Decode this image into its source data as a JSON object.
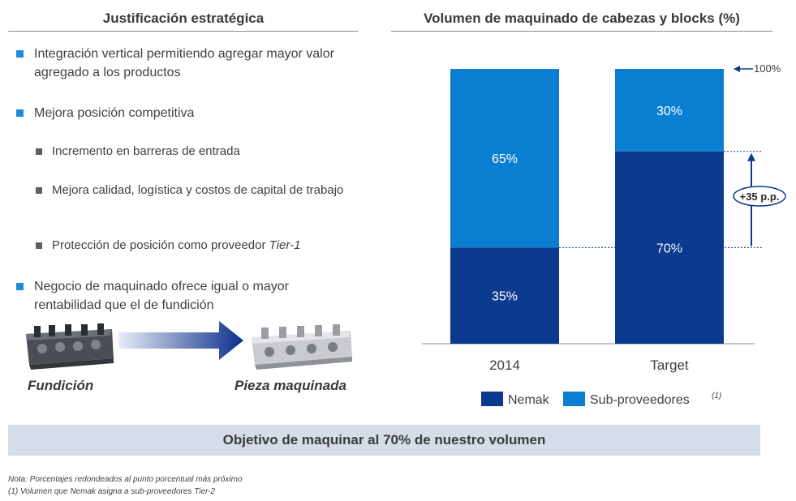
{
  "left": {
    "title": "Justificación estratégica",
    "bullets": [
      "Integración vertical permitiendo agregar mayor valor agregado a los productos",
      "Mejora posición competitiva",
      "Negocio de maquinado ofrece igual o mayor rentabilidad que el de fundición"
    ],
    "sub_bullets": [
      "Incremento en barreras de entrada",
      "Mejora calidad, logística y costos de capital de trabajo",
      "Protección de posición como proveedor "
    ],
    "sub_bullet_3_emph": "Tier-1",
    "images": {
      "left_label": "Fundición",
      "right_label": "Pieza maquinada"
    }
  },
  "right": {
    "title": "Volumen de maquinado de cabezas y blocks (%)"
  },
  "chart_data": {
    "type": "bar",
    "stacked": true,
    "title": "Volumen de maquinado de cabezas y blocks (%)",
    "categories": [
      "2014",
      "Target"
    ],
    "series": [
      {
        "name": "Nemak",
        "values": [
          35,
          70
        ],
        "labels": [
          "35%",
          "70%"
        ],
        "color": "#0b3a8e"
      },
      {
        "name": "Sub-proveedores",
        "values": [
          65,
          30
        ],
        "labels": [
          "65%",
          "30%"
        ],
        "color": "#0a7fd1"
      }
    ],
    "legend_note": "(1)",
    "ylim": [
      0,
      100
    ],
    "annotations": {
      "top_marker": "100%",
      "delta_label": "+35 p.p."
    },
    "legend_position": "bottom"
  },
  "objective": "Objetivo de maquinar al 70% de nuestro volumen",
  "notes": [
    "Nota: Porcentajes redondeados al punto porcentual más próximo",
    "(1) Volumen que Nemak asigna a sub-proveedores Tier-2"
  ],
  "colors": {
    "nemak": "#0b3a8e",
    "subproveedores": "#0a7fd1",
    "bullet": "#1f8ad9",
    "sub_bullet": "#5a5f66",
    "objective_bg": "#d4dde8"
  }
}
